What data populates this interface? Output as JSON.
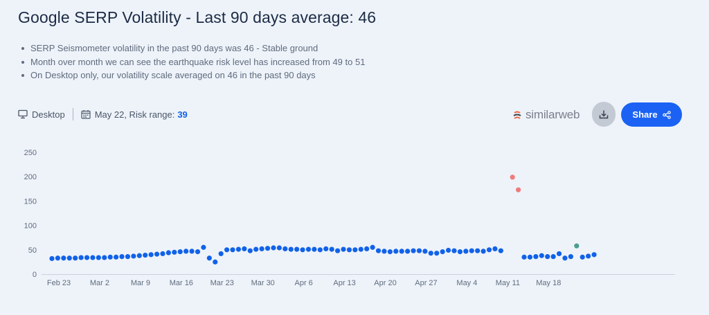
{
  "header": {
    "title": "Google SERP Volatility - Last 90 days average: 46",
    "bullets": [
      "SERP Seismometer volatility in the past 90 days was 46 - Stable ground",
      "Month over month we can see the earthquake risk level has increased from 49 to 51",
      "On Desktop only, our volatility scale averaged on 46 in the past 90 days"
    ]
  },
  "filters": {
    "device": "Desktop",
    "date_risk_label": "May 22, Risk range:",
    "risk_value": "39"
  },
  "toolbar": {
    "brand": "similarweb",
    "share_label": "Share",
    "download_icon": "download-icon",
    "share_icon": "share-icon"
  },
  "colors": {
    "normal": "#1162e8",
    "high": "#ef7b7b",
    "latest": "#4a9d8f",
    "accent": "#1b62f4"
  },
  "chart_data": {
    "type": "scatter",
    "title": "",
    "xlabel": "",
    "ylabel": "",
    "ylim": [
      0,
      250
    ],
    "yticks": [
      0,
      50,
      100,
      150,
      200,
      250
    ],
    "x_start": "Feb 23",
    "x_tick_labels": [
      "Feb 23",
      "Mar 2",
      "Mar 9",
      "Mar 16",
      "Mar 23",
      "Mar 30",
      "Apr 6",
      "Apr 13",
      "Apr 20",
      "Apr 27",
      "May 4",
      "May 11",
      "May 18"
    ],
    "grid": "none",
    "legend": "none",
    "values": [
      32,
      33,
      33,
      33,
      33,
      34,
      34,
      34,
      34,
      34,
      35,
      35,
      36,
      36,
      37,
      38,
      39,
      40,
      41,
      42,
      44,
      45,
      46,
      47,
      47,
      46,
      55,
      33,
      25,
      42,
      50,
      50,
      51,
      52,
      48,
      51,
      52,
      53,
      54,
      54,
      52,
      51,
      51,
      50,
      51,
      51,
      50,
      52,
      51,
      48,
      51,
      50,
      50,
      51,
      52,
      55,
      48,
      47,
      46,
      47,
      47,
      47,
      48,
      48,
      47,
      43,
      43,
      46,
      49,
      48,
      46,
      47,
      48,
      48,
      47,
      50,
      52,
      48,
      null,
      199,
      173,
      35,
      35,
      36,
      38,
      36,
      36,
      42,
      33,
      36,
      58,
      35,
      37,
      40
    ],
    "point_status": [
      "normal",
      "normal",
      "normal",
      "normal",
      "normal",
      "normal",
      "normal",
      "normal",
      "normal",
      "normal",
      "normal",
      "normal",
      "normal",
      "normal",
      "normal",
      "normal",
      "normal",
      "normal",
      "normal",
      "normal",
      "normal",
      "normal",
      "normal",
      "normal",
      "normal",
      "normal",
      "normal",
      "normal",
      "normal",
      "normal",
      "normal",
      "normal",
      "normal",
      "normal",
      "normal",
      "normal",
      "normal",
      "normal",
      "normal",
      "normal",
      "normal",
      "normal",
      "normal",
      "normal",
      "normal",
      "normal",
      "normal",
      "normal",
      "normal",
      "normal",
      "normal",
      "normal",
      "normal",
      "normal",
      "normal",
      "normal",
      "normal",
      "normal",
      "normal",
      "normal",
      "normal",
      "normal",
      "normal",
      "normal",
      "normal",
      "normal",
      "normal",
      "normal",
      "normal",
      "normal",
      "normal",
      "normal",
      "normal",
      "normal",
      "normal",
      "normal",
      "normal",
      "normal",
      "normal",
      "high",
      "high",
      "normal",
      "normal",
      "normal",
      "normal",
      "normal",
      "normal",
      "normal",
      "normal",
      "normal",
      "latest",
      "normal",
      "normal",
      "normal"
    ]
  }
}
